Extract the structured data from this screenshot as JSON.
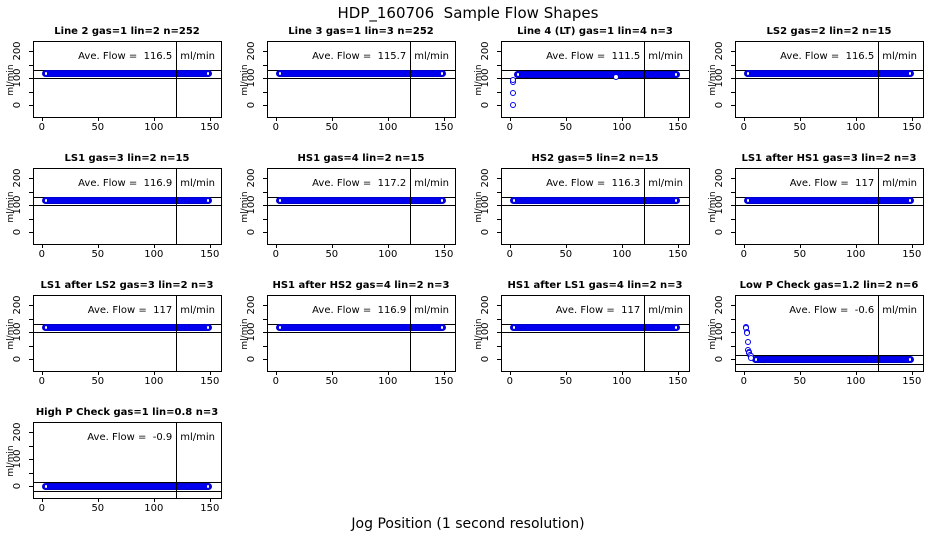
{
  "header": {
    "title": "HDP_160706  Sample Flow Shapes"
  },
  "footer": {
    "xlabel": "Jog Position (1 second resolution)"
  },
  "colors": {
    "point_blue": "#0000EE",
    "line_black": "#000000",
    "background": "#FFFFFF"
  },
  "chart_data": {
    "type": "scatter",
    "title": "HDP_160706  Sample Flow Shapes",
    "xlabel": "Jog Position (1 second resolution)",
    "ylabel": "ml/min",
    "layout": {
      "columns": 4,
      "rows": 4,
      "grid": "off",
      "legend": "none"
    },
    "axes": {
      "xlim": [
        -7,
        160
      ],
      "ylim": [
        -45,
        235
      ],
      "xticks": [
        0,
        50,
        100,
        150
      ],
      "yticks": [
        0,
        100,
        200
      ],
      "yticks_minor": [
        50,
        150
      ],
      "vline_x": 120,
      "ref_offset": 15,
      "band_default_start": 0,
      "band_default_end": 152
    },
    "subplots": [
      {
        "title": "Line 2 gas=1 lin=2 n=252",
        "ave_flow": 116.5,
        "ave_text": "Ave. Flow =  116.5",
        "unit": "ml/min",
        "band_level": 116,
        "points": []
      },
      {
        "title": "Line 3 gas=1 lin=3 n=252",
        "ave_flow": 115.7,
        "ave_text": "Ave. Flow =  115.7",
        "unit": "ml/min",
        "band_level": 116,
        "points": []
      },
      {
        "title": "Line 4 (LT) gas=1 lin=4 n=3",
        "ave_flow": 111.5,
        "ave_text": "Ave. Flow =  111.5",
        "unit": "ml/min",
        "band_level": 114,
        "band_start": 4,
        "points": [
          [
            2.5,
            1
          ],
          [
            2.5,
            45
          ],
          [
            3,
            85
          ],
          [
            3.2,
            95
          ],
          [
            95,
            103
          ]
        ]
      },
      {
        "title": "LS2 gas=2 lin=2 n=15",
        "ave_flow": 116.5,
        "ave_text": "Ave. Flow =  116.5",
        "unit": "ml/min",
        "band_level": 116,
        "points": []
      },
      {
        "title": "LS1 gas=3 lin=2 n=15",
        "ave_flow": 116.9,
        "ave_text": "Ave. Flow =  116.9",
        "unit": "ml/min",
        "band_level": 117,
        "points": []
      },
      {
        "title": "HS1 gas=4 lin=2 n=15",
        "ave_flow": 117.2,
        "ave_text": "Ave. Flow =  117.2",
        "unit": "ml/min",
        "band_level": 117,
        "points": []
      },
      {
        "title": "HS2 gas=5 lin=2 n=15",
        "ave_flow": 116.3,
        "ave_text": "Ave. Flow =  116.3",
        "unit": "ml/min",
        "band_level": 116,
        "points": []
      },
      {
        "title": "LS1 after HS1 gas=3 lin=2 n=3",
        "ave_flow": 117,
        "ave_text": "Ave. Flow =  117",
        "unit": "ml/min",
        "band_level": 117,
        "points": []
      },
      {
        "title": "LS1 after LS2 gas=3 lin=2 n=3",
        "ave_flow": 117,
        "ave_text": "Ave. Flow =  117",
        "unit": "ml/min",
        "band_level": 117,
        "points": []
      },
      {
        "title": "HS1 after HS2 gas=4 lin=2 n=3",
        "ave_flow": 116.9,
        "ave_text": "Ave. Flow =  116.9",
        "unit": "ml/min",
        "band_level": 117,
        "points": []
      },
      {
        "title": "HS1 after LS1 gas=4 lin=2 n=3",
        "ave_flow": 117,
        "ave_text": "Ave. Flow =  117",
        "unit": "ml/min",
        "band_level": 117,
        "points": []
      },
      {
        "title": "Low P Check gas=1.2 lin=2 n=6",
        "ave_flow": -0.6,
        "ave_text": "Ave. Flow =  -0.6",
        "unit": "ml/min",
        "band_level": -2,
        "band_start": 7,
        "points": [
          [
            2,
            120
          ],
          [
            2.3,
            117
          ],
          [
            2.6,
            99
          ],
          [
            2.9,
            96
          ],
          [
            3.5,
            64
          ],
          [
            4.1,
            34
          ],
          [
            4.5,
            27
          ],
          [
            5,
            21
          ],
          [
            5.5,
            15
          ],
          [
            6,
            10
          ],
          [
            6.8,
            5
          ]
        ]
      },
      {
        "title": "High P Check gas=1 lin=0.8 n=3",
        "ave_flow": -0.9,
        "ave_text": "Ave. Flow =  -0.9",
        "unit": "ml/min",
        "band_level": -2,
        "points": []
      }
    ]
  }
}
